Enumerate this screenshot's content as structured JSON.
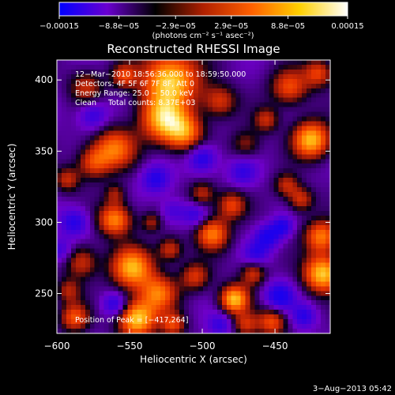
{
  "chart_data": {
    "type": "heatmap",
    "title": "Reconstructed RHESSI Image",
    "xlabel": "Heliocentric X (arcsec)",
    "ylabel": "Heliocentric Y (arcsec)",
    "xlim": [
      -600,
      -412
    ],
    "ylim": [
      222,
      414
    ],
    "x_ticks": [
      -600,
      -550,
      -500,
      -450
    ],
    "x_tick_labels": [
      "−600",
      "−550",
      "−500",
      "−450"
    ],
    "y_ticks": [
      250,
      300,
      350,
      400
    ],
    "y_tick_labels": [
      "250",
      "300",
      "350",
      "400"
    ],
    "colorbar": {
      "range": [
        -0.00015,
        0.00015
      ],
      "ticks": [
        -0.00015,
        -8.8e-05,
        -2.9e-05,
        2.9e-05,
        8.8e-05,
        0.00015
      ],
      "tick_labels": [
        "−0.00015",
        "−8.8e−05",
        "−2.9e−05",
        "2.9e−05",
        "8.8e−05",
        "0.00015"
      ],
      "units_label": "(photons cm⁻² s⁻¹ asec⁻²)",
      "colors": [
        "#0000ff",
        "#6a00d0",
        "#000000",
        "#b02000",
        "#ff6000",
        "#ffd000",
        "#ffffff"
      ]
    },
    "annotations": [
      "12−Mar−2010 18:56:36.000 to 18:59:50.000",
      "Detectors: 4F 5F 6F 7F 8F, Att 0",
      "Energy Range: 25.0 − 50.0 keV",
      "Clean     Total counts: 8.37E+03"
    ],
    "peak_annotation": "Position of Peak = [−417,264]",
    "peak_position": [
      -417,
      264
    ],
    "image_values_note": "",
    "blobs": [
      {
        "x": -522,
        "y": 400,
        "v": 1.0,
        "s": 14
      },
      {
        "x": -527,
        "y": 372,
        "v": 0.85,
        "s": 11
      },
      {
        "x": -512,
        "y": 363,
        "v": 0.7,
        "s": 9
      },
      {
        "x": -560,
        "y": 352,
        "v": 0.7,
        "s": 10
      },
      {
        "x": -575,
        "y": 342,
        "v": 0.55,
        "s": 8
      },
      {
        "x": -425,
        "y": 358,
        "v": 0.95,
        "s": 9
      },
      {
        "x": -440,
        "y": 395,
        "v": 0.6,
        "s": 9
      },
      {
        "x": -420,
        "y": 405,
        "v": 0.55,
        "s": 7
      },
      {
        "x": -488,
        "y": 385,
        "v": 0.5,
        "s": 8
      },
      {
        "x": -470,
        "y": 355,
        "v": 0.35,
        "s": 7
      },
      {
        "x": -560,
        "y": 302,
        "v": 0.8,
        "s": 8
      },
      {
        "x": -548,
        "y": 268,
        "v": 0.9,
        "s": 10
      },
      {
        "x": -530,
        "y": 250,
        "v": 0.7,
        "s": 9
      },
      {
        "x": -545,
        "y": 232,
        "v": 1.0,
        "s": 9
      },
      {
        "x": -593,
        "y": 330,
        "v": 0.45,
        "s": 6
      },
      {
        "x": -493,
        "y": 292,
        "v": 0.75,
        "s": 8
      },
      {
        "x": -480,
        "y": 312,
        "v": 0.55,
        "s": 7
      },
      {
        "x": -500,
        "y": 320,
        "v": 0.45,
        "s": 6
      },
      {
        "x": -522,
        "y": 281,
        "v": 0.5,
        "s": 6
      },
      {
        "x": -535,
        "y": 300,
        "v": 0.35,
        "s": 5
      },
      {
        "x": -478,
        "y": 246,
        "v": 0.95,
        "s": 7
      },
      {
        "x": -505,
        "y": 262,
        "v": 0.5,
        "s": 7
      },
      {
        "x": -465,
        "y": 264,
        "v": 0.5,
        "s": 6
      },
      {
        "x": -452,
        "y": 230,
        "v": 0.6,
        "s": 7
      },
      {
        "x": -470,
        "y": 228,
        "v": 0.45,
        "s": 6
      },
      {
        "x": -417,
        "y": 264,
        "v": 1.0,
        "s": 9
      },
      {
        "x": -418,
        "y": 290,
        "v": 0.75,
        "s": 8
      },
      {
        "x": -432,
        "y": 316,
        "v": 0.5,
        "s": 6
      },
      {
        "x": -442,
        "y": 326,
        "v": 0.45,
        "s": 6
      },
      {
        "x": -583,
        "y": 272,
        "v": 0.5,
        "s": 8
      },
      {
        "x": -592,
        "y": 252,
        "v": 0.4,
        "s": 6
      },
      {
        "x": -588,
        "y": 233,
        "v": 0.6,
        "s": 7
      },
      {
        "x": -520,
        "y": 228,
        "v": 0.55,
        "s": 6
      },
      {
        "x": -560,
        "y": 320,
        "v": 0.35,
        "s": 5
      },
      {
        "x": -456,
        "y": 372,
        "v": 0.45,
        "s": 6
      },
      {
        "x": -580,
        "y": 395,
        "v": 0.45,
        "s": 8
      },
      {
        "x": -554,
        "y": 403,
        "v": 0.5,
        "s": 6
      },
      {
        "x": -455,
        "y": 290,
        "v": -0.5,
        "s": 6
      },
      {
        "x": -445,
        "y": 297,
        "v": -0.45,
        "s": 5
      },
      {
        "x": -500,
        "y": 345,
        "v": -0.5,
        "s": 7
      },
      {
        "x": -505,
        "y": 305,
        "v": -0.35,
        "s": 6
      },
      {
        "x": -588,
        "y": 300,
        "v": -0.45,
        "s": 7
      },
      {
        "x": -560,
        "y": 242,
        "v": -0.45,
        "s": 6
      },
      {
        "x": -447,
        "y": 248,
        "v": -0.55,
        "s": 7
      },
      {
        "x": -463,
        "y": 278,
        "v": -0.35,
        "s": 6
      },
      {
        "x": -532,
        "y": 330,
        "v": -0.45,
        "s": 7
      },
      {
        "x": -575,
        "y": 375,
        "v": -0.4,
        "s": 7
      },
      {
        "x": -472,
        "y": 335,
        "v": -0.35,
        "s": 7
      },
      {
        "x": -520,
        "y": 308,
        "v": -0.3,
        "s": 6
      },
      {
        "x": -598,
        "y": 280,
        "v": -0.35,
        "s": 6
      },
      {
        "x": -488,
        "y": 228,
        "v": -0.35,
        "s": 6
      },
      {
        "x": -430,
        "y": 234,
        "v": -0.4,
        "s": 6
      }
    ]
  },
  "footer": {
    "date": "3−Aug−2013 05:42"
  }
}
